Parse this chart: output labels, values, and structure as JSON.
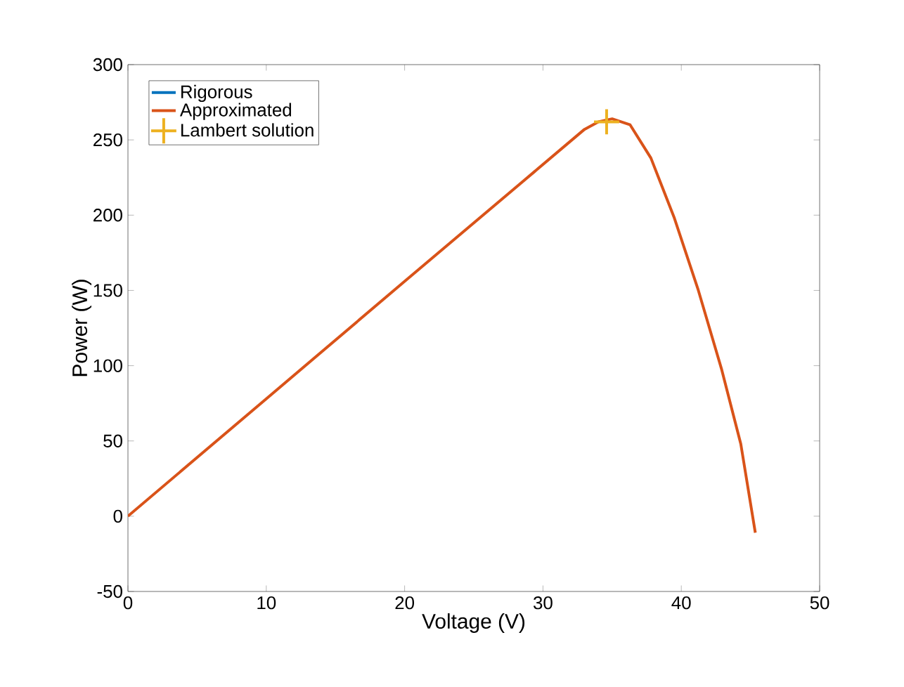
{
  "chart_data": {
    "type": "line",
    "xlabel": "Voltage (V)",
    "ylabel": "Power (W)",
    "xlim": [
      0,
      50
    ],
    "xticks": [
      0,
      10,
      20,
      30,
      40,
      50
    ],
    "ylim": [
      -50,
      300
    ],
    "yticks": [
      -50,
      0,
      50,
      100,
      150,
      200,
      250,
      300
    ],
    "legend": "top left",
    "series": [
      {
        "name": "Rigorous",
        "color": "#0072bd"
      },
      {
        "name": "Approximated",
        "color": "#d95319",
        "x": [
          0,
          10,
          20,
          29.4,
          33,
          34,
          35,
          36.3,
          37.8,
          39.5,
          41.2,
          42.9,
          44.3,
          45.35
        ],
        "values": [
          0,
          78,
          156,
          229,
          257,
          262,
          264,
          260,
          238,
          198,
          151,
          98,
          48,
          -11
        ]
      },
      {
        "name": "Lambert solution",
        "type": "scatter",
        "marker": "cross",
        "color": "#edb120",
        "x": [
          34.6
        ],
        "values": [
          262
        ]
      }
    ]
  }
}
